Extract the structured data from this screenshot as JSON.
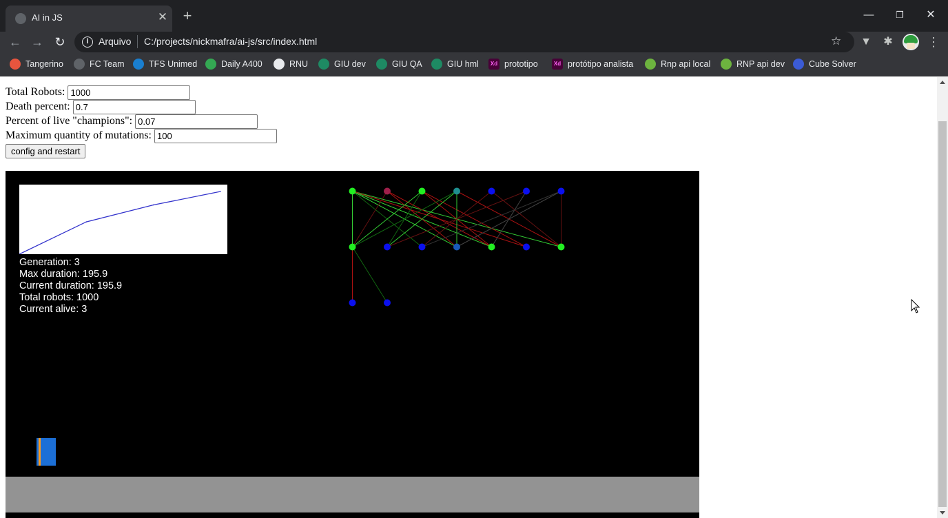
{
  "browser": {
    "tab_title": "AI in JS",
    "tab_close_glyph": "✕",
    "new_tab_glyph": "+",
    "url_scheme": "Arquivo",
    "url": "C:/projects/nickmafra/ai-js/src/index.html",
    "bookmarks": [
      {
        "label": "Tangerino",
        "icon": "tangerino-icon",
        "color": "#e8553e"
      },
      {
        "label": "FC Team",
        "icon": "clock-icon",
        "color": "#5f6368"
      },
      {
        "label": "TFS Unimed",
        "icon": "azure-devops-icon",
        "color": "#1a7fd0"
      },
      {
        "label": "Daily A400",
        "icon": "meet-icon",
        "color": "#34a853"
      },
      {
        "label": "RNU",
        "icon": "globe-icon",
        "color": "#e8eaed"
      },
      {
        "label": "GIU dev",
        "icon": "giu-icon",
        "color": "#1e8a63"
      },
      {
        "label": "GIU QA",
        "icon": "giu-icon",
        "color": "#1e8a63"
      },
      {
        "label": "GIU hml",
        "icon": "giu-icon",
        "color": "#1e8a63"
      },
      {
        "label": "prototipo",
        "icon": "xd-icon",
        "color": "#470137",
        "glyph": "Xd"
      },
      {
        "label": "protótipo analista",
        "icon": "xd-icon",
        "color": "#470137",
        "glyph": "Xd"
      },
      {
        "label": "Rnp api local",
        "icon": "spring-icon",
        "color": "#6db33f"
      },
      {
        "label": "RNP api dev",
        "icon": "spring-icon",
        "color": "#6db33f"
      },
      {
        "label": "Cube Solver",
        "icon": "cube-icon",
        "color": "#3b5bd6"
      }
    ]
  },
  "form": {
    "total_robots_label": "Total Robots:",
    "total_robots_value": "1000",
    "death_percent_label": "Death percent:",
    "death_percent_value": "0.7",
    "champions_label": "Percent of live \"champions\":",
    "champions_value": "0.07",
    "mutations_label": "Maximum quantity of mutations:",
    "mutations_value": "100",
    "restart_label": "config and restart"
  },
  "stats": {
    "generation": "Generation: 3",
    "max_duration": "Max duration: 195.9",
    "current_duration": "Current duration: 195.9",
    "total_robots": "Total robots: 1000",
    "current_alive": "Current alive: 3"
  },
  "chart_data": {
    "type": "line",
    "x": [
      0,
      1,
      2,
      3
    ],
    "values": [
      0,
      101,
      154,
      195.9
    ],
    "ylim": [
      0,
      195.9
    ],
    "color": "#3333cc",
    "grid": false
  },
  "network": {
    "layers": [
      {
        "colors": [
          "#22ee22",
          "#9e1f4a",
          "#22ee22",
          "#1e8f8f",
          "#0b10ee",
          "#0b10ee",
          "#0b10ee"
        ]
      },
      {
        "colors": [
          "#22ee22",
          "#0b10ee",
          "#0b10ee",
          "#1a5ab8",
          "#22ee22",
          "#0b10ee",
          "#22ee22"
        ]
      },
      {
        "colors": [
          "#0b10ee",
          "#0b10ee"
        ]
      }
    ],
    "connections": [
      {
        "from": [
          0,
          0
        ],
        "to": [
          1,
          0
        ],
        "color": "#33cc33"
      },
      {
        "from": [
          0,
          0
        ],
        "to": [
          1,
          3
        ],
        "color": "#33cc33"
      },
      {
        "from": [
          0,
          0
        ],
        "to": [
          1,
          4
        ],
        "color": "#33cc33"
      },
      {
        "from": [
          0,
          0
        ],
        "to": [
          1,
          6
        ],
        "color": "#33cc33"
      },
      {
        "from": [
          0,
          0
        ],
        "to": [
          1,
          5
        ],
        "color": "#aa1111"
      },
      {
        "from": [
          0,
          0
        ],
        "to": [
          1,
          2
        ],
        "color": "#116611"
      },
      {
        "from": [
          0,
          1
        ],
        "to": [
          1,
          3
        ],
        "color": "#aa1111"
      },
      {
        "from": [
          0,
          1
        ],
        "to": [
          1,
          4
        ],
        "color": "#aa1111"
      },
      {
        "from": [
          0,
          1
        ],
        "to": [
          1,
          0
        ],
        "color": "#661111"
      },
      {
        "from": [
          0,
          2
        ],
        "to": [
          1,
          0
        ],
        "color": "#33cc33"
      },
      {
        "from": [
          0,
          2
        ],
        "to": [
          1,
          4
        ],
        "color": "#aa1111"
      },
      {
        "from": [
          0,
          2
        ],
        "to": [
          1,
          5
        ],
        "color": "#aa1111"
      },
      {
        "from": [
          0,
          2
        ],
        "to": [
          1,
          1
        ],
        "color": "#116611"
      },
      {
        "from": [
          0,
          3
        ],
        "to": [
          1,
          1
        ],
        "color": "#33cc33"
      },
      {
        "from": [
          0,
          3
        ],
        "to": [
          1,
          3
        ],
        "color": "#33cc33"
      },
      {
        "from": [
          0,
          3
        ],
        "to": [
          1,
          0
        ],
        "color": "#116611"
      },
      {
        "from": [
          0,
          3
        ],
        "to": [
          1,
          6
        ],
        "color": "#aa1111"
      },
      {
        "from": [
          0,
          4
        ],
        "to": [
          1,
          2
        ],
        "color": "#661111"
      },
      {
        "from": [
          0,
          4
        ],
        "to": [
          1,
          6
        ],
        "color": "#661111"
      },
      {
        "from": [
          0,
          5
        ],
        "to": [
          1,
          1
        ],
        "color": "#661111"
      },
      {
        "from": [
          0,
          5
        ],
        "to": [
          1,
          4
        ],
        "color": "#444444"
      },
      {
        "from": [
          0,
          6
        ],
        "to": [
          1,
          6
        ],
        "color": "#661111"
      },
      {
        "from": [
          0,
          6
        ],
        "to": [
          1,
          3
        ],
        "color": "#444444"
      },
      {
        "from": [
          0,
          6
        ],
        "to": [
          1,
          2
        ],
        "color": "#333333"
      },
      {
        "from": [
          1,
          0
        ],
        "to": [
          2,
          0
        ],
        "color": "#aa1111"
      },
      {
        "from": [
          1,
          0
        ],
        "to": [
          2,
          1
        ],
        "color": "#116611"
      }
    ]
  }
}
